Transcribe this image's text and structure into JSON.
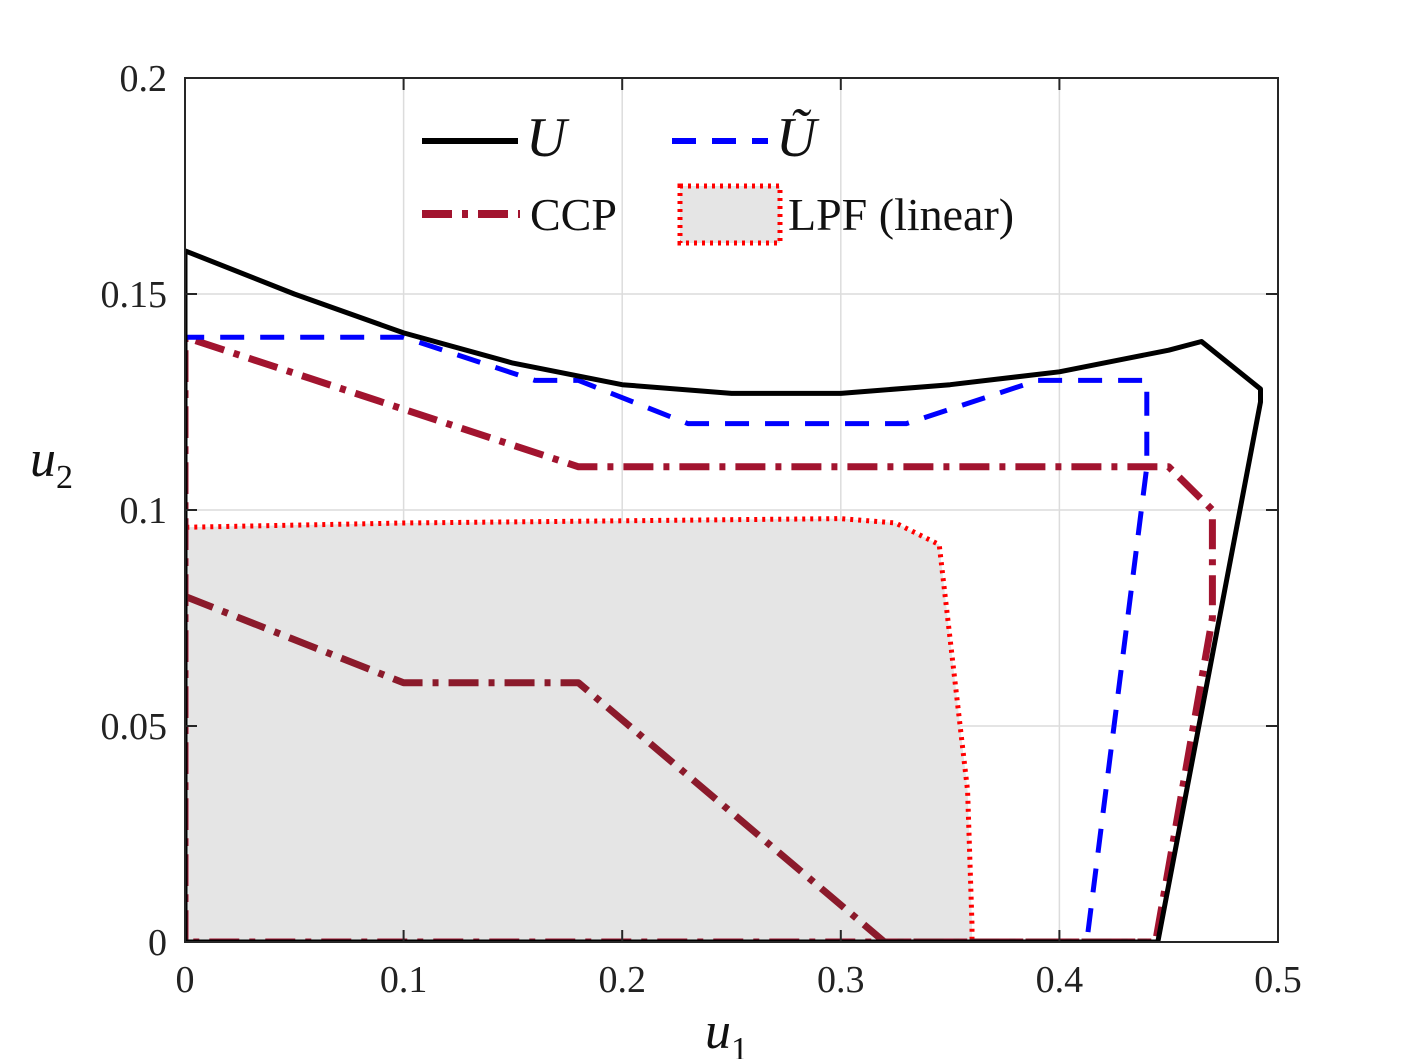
{
  "chart_data": {
    "type": "line",
    "title": "",
    "xlabel": "u",
    "xlabel_sub": "1",
    "ylabel": "u",
    "ylabel_sub": "2",
    "xlim": [
      0,
      0.5
    ],
    "ylim": [
      0,
      0.2
    ],
    "grid": true,
    "legend_position": "top",
    "x_ticks": [
      0,
      0.1,
      0.2,
      0.3,
      0.4,
      0.5
    ],
    "x_tick_labels": [
      "0",
      "0.1",
      "0.2",
      "0.3",
      "0.4",
      "0.5"
    ],
    "y_ticks": [
      0,
      0.05,
      0.1,
      0.15,
      0.2
    ],
    "y_tick_labels": [
      "0",
      "0.05",
      "0.1",
      "0.15",
      "0.2"
    ],
    "colors": {
      "U": "#000000",
      "U_tilde": "#0000ff",
      "CCP": "#a2142f",
      "CCP_inner": "#8b1a2b",
      "LPF_edge": "#ff0000",
      "LPF_fill": "#e5e5e5",
      "grid": "#dcdcdc"
    },
    "series": [
      {
        "name": "LPF (linear)",
        "legend_label": "LPF (linear)",
        "style": "dotted-filled",
        "x": [
          0,
          0,
          0.1,
          0.2,
          0.3,
          0.325,
          0.345,
          0.358,
          0.36,
          0.36,
          0
        ],
        "y": [
          0,
          0.096,
          0.097,
          0.0975,
          0.098,
          0.097,
          0.092,
          0.035,
          0.004,
          0,
          0
        ]
      },
      {
        "name": "CCP",
        "legend_label": "CCP",
        "style": "dashdot",
        "x": [
          0,
          0,
          0.18,
          0.45,
          0.47,
          0.47,
          0.444,
          0,
          0
        ],
        "y": [
          0,
          0.14,
          0.11,
          0.11,
          0.1,
          0.075,
          0,
          0,
          0.14
        ]
      },
      {
        "name": "CCP inner",
        "legend_label": "",
        "style": "dashdot",
        "x": [
          0,
          0.05,
          0.1,
          0.18,
          0.32,
          0.44
        ],
        "y": [
          0.08,
          0.07,
          0.06,
          0.06,
          0,
          0
        ]
      },
      {
        "name": "U tilde",
        "legend_label": "Ũ",
        "style": "dashed",
        "x": [
          0,
          0,
          0.1,
          0.16,
          0.18,
          0.23,
          0.33,
          0.36,
          0.39,
          0.44,
          0.44,
          0.413,
          0.41,
          0
        ],
        "y": [
          0,
          0.14,
          0.14,
          0.13,
          0.13,
          0.12,
          0.12,
          0.125,
          0.13,
          0.13,
          0.11,
          0.002,
          0,
          0
        ]
      },
      {
        "name": "U",
        "legend_label": "U",
        "style": "solid",
        "x": [
          0,
          0,
          0.05,
          0.1,
          0.15,
          0.2,
          0.25,
          0.3,
          0.35,
          0.4,
          0.43,
          0.45,
          0.465,
          0.492,
          0.492,
          0.445,
          0,
          0
        ],
        "y": [
          0,
          0.16,
          0.15,
          0.141,
          0.134,
          0.129,
          0.127,
          0.127,
          0.129,
          0.132,
          0.135,
          0.137,
          0.139,
          0.128,
          0.125,
          0,
          0,
          0.16
        ]
      }
    ]
  }
}
